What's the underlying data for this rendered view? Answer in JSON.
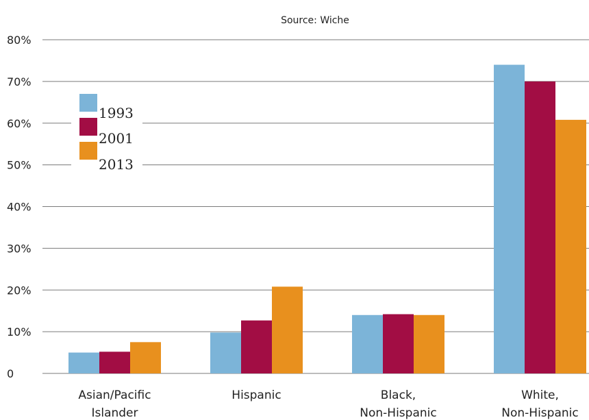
{
  "chart_data": {
    "type": "bar",
    "subtitle": "Source: Wiche",
    "categories": [
      [
        "Asian/Pacific",
        "Islander"
      ],
      [
        "Hispanic"
      ],
      [
        "Black,",
        "Non-Hispanic"
      ],
      [
        "White,",
        "Non-Hispanic"
      ]
    ],
    "series": [
      {
        "name": "1993",
        "color": "#7cb4d8",
        "values": [
          5,
          9.8,
          14,
          74
        ]
      },
      {
        "name": "2001",
        "color": "#a20d44",
        "values": [
          5.2,
          12.7,
          14.2,
          70
        ]
      },
      {
        "name": "2013",
        "color": "#e8901e",
        "values": [
          7.5,
          20.8,
          14,
          60.8
        ]
      }
    ],
    "y_ticks": [
      "0",
      "10%",
      "20%",
      "30%",
      "40%",
      "50%",
      "60%",
      "70%",
      "80%"
    ],
    "ylim": [
      0,
      80
    ],
    "grid": true,
    "legend_position": "top-left"
  }
}
